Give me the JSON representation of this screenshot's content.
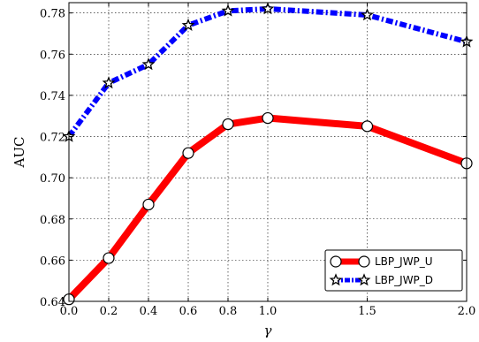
{
  "chart_data": {
    "type": "line",
    "xlabel": "γ",
    "ylabel": "AUC",
    "x": [
      0.0,
      0.2,
      0.4,
      0.6,
      0.8,
      1.0,
      1.5,
      2.0
    ],
    "x_tick_labels": [
      "0.0",
      "0.2",
      "0.4",
      "0.6",
      "0.8",
      "1.0",
      "1.5",
      "2.0"
    ],
    "ylim": [
      0.64,
      0.785
    ],
    "y_ticks": [
      0.64,
      0.66,
      0.68,
      0.7,
      0.72,
      0.74,
      0.76,
      0.78
    ],
    "y_tick_labels": [
      "0.64",
      "0.66",
      "0.68",
      "0.70",
      "0.72",
      "0.74",
      "0.76",
      "0.78"
    ],
    "grid": true,
    "legend_position": "bottom-right",
    "series": [
      {
        "name": "LBP_JWP_U",
        "color": "#ff0000",
        "marker": "circle",
        "line_style": "solid",
        "values": [
          0.641,
          0.661,
          0.687,
          0.712,
          0.726,
          0.729,
          0.725,
          0.707
        ]
      },
      {
        "name": "LBP_JWP_D",
        "color": "#0000ff",
        "marker": "star",
        "line_style": "dash-dot",
        "values": [
          0.72,
          0.746,
          0.755,
          0.774,
          0.781,
          0.782,
          0.779,
          0.766
        ]
      }
    ]
  }
}
